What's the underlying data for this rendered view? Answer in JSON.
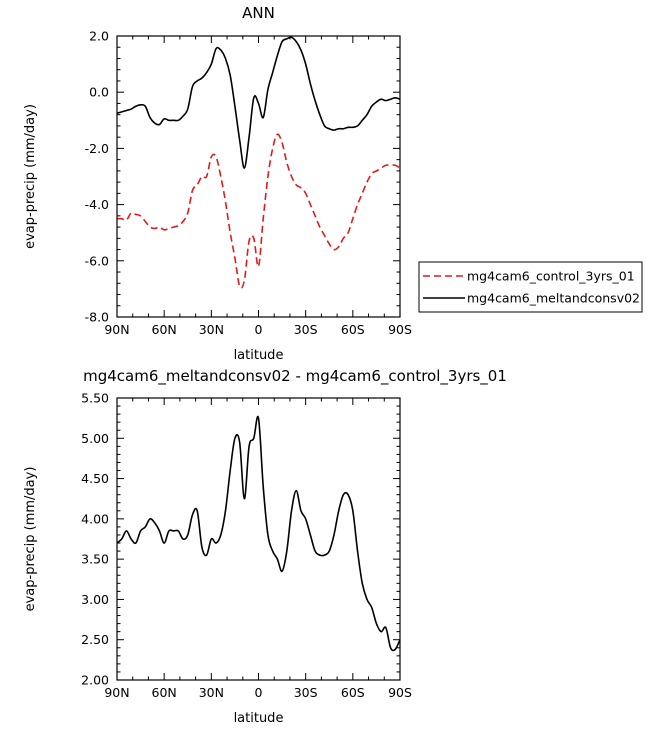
{
  "chart_data": [
    {
      "type": "line",
      "title": "ANN",
      "xlabel": "latitude",
      "ylabel": "evap-precip  (mm/day)",
      "xlim": [
        90,
        -90
      ],
      "ylim": [
        -8.0,
        2.0
      ],
      "xticks": [
        90,
        60,
        30,
        0,
        -30,
        -60,
        -90
      ],
      "xtick_labels": [
        "90N",
        "60N",
        "30N",
        "0",
        "30S",
        "60S",
        "90S"
      ],
      "yticks": [
        -8.0,
        -6.0,
        -4.0,
        -2.0,
        0.0,
        2.0
      ],
      "ytick_labels": [
        "-8.0",
        "-6.0",
        "-4.0",
        "-2.0",
        "0.0",
        "2.0"
      ],
      "legend_position": "outside-right",
      "series": [
        {
          "name": "mg4cam6_control_3yrs_01",
          "color": "#e31a1c",
          "dash": "dashed",
          "x": [
            90,
            87,
            84,
            81,
            78,
            75,
            72,
            69,
            66,
            63,
            60,
            57,
            54,
            51,
            48,
            45,
            42,
            39,
            36,
            33,
            30,
            27,
            24,
            21,
            18,
            15,
            12,
            9,
            6,
            3,
            0,
            -3,
            -6,
            -9,
            -12,
            -15,
            -18,
            -21,
            -24,
            -27,
            -30,
            -33,
            -36,
            -39,
            -42,
            -45,
            -48,
            -51,
            -54,
            -57,
            -60,
            -63,
            -66,
            -69,
            -72,
            -75,
            -78,
            -81,
            -84,
            -87,
            -90
          ],
          "y": [
            -4.5,
            -4.5,
            -4.55,
            -4.3,
            -4.35,
            -4.4,
            -4.6,
            -4.8,
            -4.85,
            -4.8,
            -4.9,
            -4.85,
            -4.8,
            -4.75,
            -4.6,
            -4.3,
            -3.5,
            -3.3,
            -3.0,
            -3.0,
            -2.3,
            -2.3,
            -3.0,
            -3.9,
            -5.0,
            -5.9,
            -6.9,
            -6.7,
            -5.3,
            -5.2,
            -6.2,
            -4.5,
            -3.0,
            -2.0,
            -1.5,
            -1.8,
            -2.5,
            -3.0,
            -3.3,
            -3.4,
            -3.6,
            -4.0,
            -4.4,
            -4.8,
            -5.1,
            -5.4,
            -5.6,
            -5.5,
            -5.2,
            -5.0,
            -4.5,
            -4.0,
            -3.6,
            -3.2,
            -2.9,
            -2.8,
            -2.7,
            -2.6,
            -2.6,
            -2.6,
            -2.7
          ]
        },
        {
          "name": "mg4cam6_meltandconsv02",
          "color": "#000000",
          "dash": "solid",
          "x": [
            90,
            87,
            84,
            81,
            78,
            75,
            72,
            69,
            66,
            63,
            60,
            57,
            54,
            51,
            48,
            45,
            42,
            39,
            36,
            33,
            30,
            27,
            24,
            21,
            18,
            15,
            12,
            9,
            6,
            3,
            0,
            -3,
            -6,
            -9,
            -12,
            -15,
            -18,
            -21,
            -24,
            -27,
            -30,
            -33,
            -36,
            -39,
            -42,
            -45,
            -48,
            -51,
            -54,
            -57,
            -60,
            -63,
            -66,
            -69,
            -72,
            -75,
            -78,
            -81,
            -84,
            -87,
            -90
          ],
          "y": [
            -0.75,
            -0.7,
            -0.65,
            -0.6,
            -0.5,
            -0.45,
            -0.5,
            -0.9,
            -1.1,
            -1.15,
            -0.95,
            -1.0,
            -1.0,
            -1.0,
            -0.85,
            -0.6,
            0.2,
            0.4,
            0.5,
            0.7,
            1.0,
            1.55,
            1.5,
            1.2,
            0.6,
            -0.5,
            -1.7,
            -2.7,
            -1.6,
            -0.2,
            -0.4,
            -0.9,
            0.1,
            0.7,
            1.3,
            1.8,
            1.9,
            1.95,
            1.8,
            1.5,
            1.0,
            0.3,
            -0.3,
            -0.8,
            -1.2,
            -1.3,
            -1.35,
            -1.3,
            -1.3,
            -1.25,
            -1.25,
            -1.2,
            -1.0,
            -0.8,
            -0.5,
            -0.35,
            -0.25,
            -0.3,
            -0.25,
            -0.2,
            -0.25
          ]
        }
      ]
    },
    {
      "type": "line",
      "title": "mg4cam6_meltandconsv02 - mg4cam6_control_3yrs_01",
      "xlabel": "latitude",
      "ylabel": "evap-precip  (mm/day)",
      "xlim": [
        90,
        -90
      ],
      "ylim": [
        2.0,
        5.5
      ],
      "xticks": [
        90,
        60,
        30,
        0,
        -30,
        -60,
        -90
      ],
      "xtick_labels": [
        "90N",
        "60N",
        "30N",
        "0",
        "30S",
        "60S",
        "90S"
      ],
      "yticks": [
        2.0,
        2.5,
        3.0,
        3.5,
        4.0,
        4.5,
        5.0,
        5.5
      ],
      "ytick_labels": [
        "2.00",
        "2.50",
        "3.00",
        "3.50",
        "4.00",
        "4.50",
        "5.00",
        "5.50"
      ],
      "series": [
        {
          "color": "#000000",
          "dash": "solid",
          "x": [
            90,
            87,
            84,
            81,
            78,
            75,
            72,
            69,
            66,
            63,
            60,
            57,
            54,
            51,
            48,
            45,
            42,
            39,
            36,
            33,
            30,
            27,
            24,
            21,
            18,
            15,
            12,
            9,
            6,
            3,
            0,
            -3,
            -6,
            -9,
            -12,
            -15,
            -18,
            -21,
            -24,
            -27,
            -30,
            -33,
            -36,
            -39,
            -42,
            -45,
            -48,
            -51,
            -54,
            -57,
            -60,
            -63,
            -66,
            -69,
            -72,
            -75,
            -78,
            -81,
            -84,
            -87,
            -90
          ],
          "y": [
            3.7,
            3.75,
            3.85,
            3.75,
            3.7,
            3.85,
            3.9,
            4.0,
            3.95,
            3.85,
            3.7,
            3.85,
            3.85,
            3.85,
            3.75,
            3.8,
            4.05,
            4.1,
            3.65,
            3.55,
            3.75,
            3.7,
            3.8,
            4.1,
            4.6,
            5.0,
            4.95,
            4.25,
            4.9,
            5.0,
            5.25,
            4.4,
            3.8,
            3.6,
            3.5,
            3.35,
            3.6,
            4.1,
            4.35,
            4.1,
            4.0,
            3.8,
            3.6,
            3.55,
            3.55,
            3.6,
            3.8,
            4.1,
            4.3,
            4.3,
            4.1,
            3.6,
            3.2,
            3.0,
            2.9,
            2.7,
            2.6,
            2.65,
            2.4,
            2.38,
            2.5
          ]
        }
      ]
    }
  ]
}
